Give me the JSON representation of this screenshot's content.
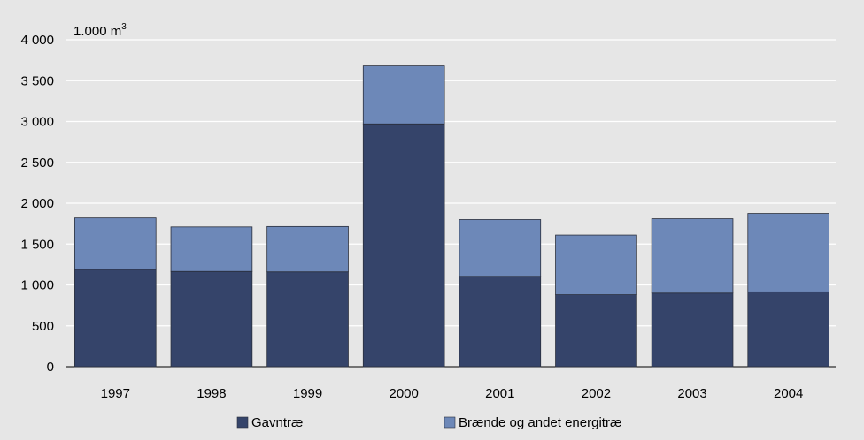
{
  "chart_data": {
    "type": "bar",
    "stacked": true,
    "unit_label": "1.000 m",
    "unit_superscript": "3",
    "categories": [
      "1997",
      "1998",
      "1999",
      "2000",
      "2001",
      "2002",
      "2003",
      "2004"
    ],
    "series": [
      {
        "name": "Gavntræ",
        "color": "#35446a",
        "values": [
          1190,
          1165,
          1160,
          2970,
          1105,
          880,
          900,
          915
        ]
      },
      {
        "name": "Brænde og andet energitræ",
        "color": "#6d88b8",
        "values": [
          630,
          545,
          555,
          710,
          695,
          730,
          910,
          960
        ]
      }
    ],
    "ylim": [
      0,
      4000
    ],
    "yticks": [
      0,
      500,
      1000,
      1500,
      2000,
      2500,
      3000,
      3500,
      4000
    ],
    "ytick_labels": [
      "0",
      "500",
      "1 000",
      "1 500",
      "2 000",
      "2 500",
      "3 000",
      "3 500",
      "4 000"
    ],
    "grid": true,
    "legend_position": "bottom"
  }
}
